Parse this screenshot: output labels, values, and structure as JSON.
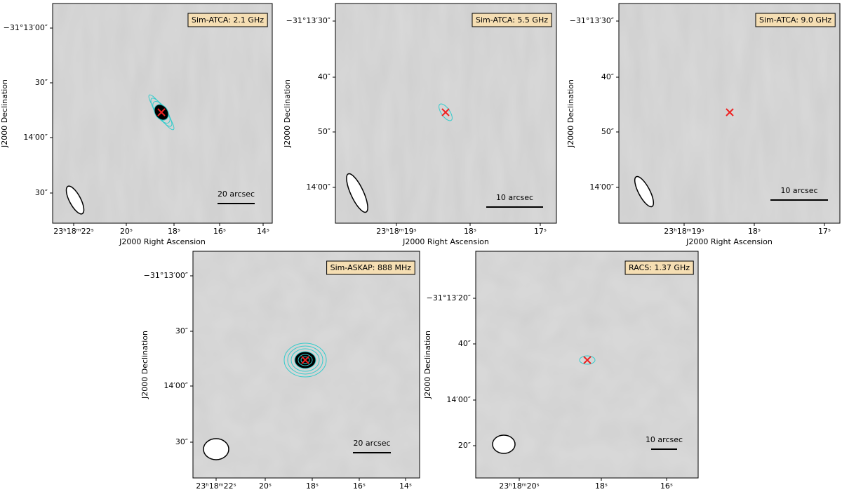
{
  "panels": [
    {
      "label": "Sim-ATCA: 2.1 GHz",
      "xticks": [
        "23ʰ18ᵐ22ˢ",
        "20ˢ",
        "18ˢ",
        "16ˢ",
        "14ˢ"
      ],
      "yticks": [
        "−31°13′00″",
        "30″",
        "14′00″",
        "30″"
      ],
      "xlabel": "J2000 Right Ascension",
      "ylabel": "J2000 Declination",
      "scalebar": "20 arcsec"
    },
    {
      "label": "Sim-ATCA: 5.5 GHz",
      "xticks": [
        "23ʰ18ᵐ19ˢ",
        "18ˢ",
        "17ˢ"
      ],
      "yticks": [
        "−31°13′30″",
        "40″",
        "50″",
        "14′00″"
      ],
      "xlabel": "J2000 Right Ascension",
      "ylabel": "J2000 Declination",
      "scalebar": "10 arcsec"
    },
    {
      "label": "Sim-ATCA: 9.0 GHz",
      "xticks": [
        "23ʰ18ᵐ19ˢ",
        "18ˢ",
        "17ˢ"
      ],
      "yticks": [
        "−31°13′30″",
        "40″",
        "50″",
        "14′00″"
      ],
      "xlabel": "J2000 Right Ascension",
      "ylabel": "J2000 Declination",
      "scalebar": "10 arcsec"
    },
    {
      "label": "Sim-ASKAP: 888 MHz",
      "xticks": [
        "23ʰ18ᵐ22ˢ",
        "20ˢ",
        "18ˢ",
        "16ˢ",
        "14ˢ"
      ],
      "yticks": [
        "−31°13′00″",
        "30″",
        "14′00″",
        "30″"
      ],
      "xlabel": "J2000 Right Ascension",
      "ylabel": "J2000 Declination",
      "scalebar": "20 arcsec"
    },
    {
      "label": "RACS: 1.37 GHz",
      "xticks": [
        "23ʰ18ᵐ20ˢ",
        "18ˢ",
        "16ˢ"
      ],
      "yticks": [
        "−31°13′20″",
        "40″",
        "14′00″",
        "20″"
      ],
      "xlabel": "J2000 Right Ascension",
      "ylabel": "J2000 Declination",
      "scalebar": "10 arcsec"
    }
  ]
}
